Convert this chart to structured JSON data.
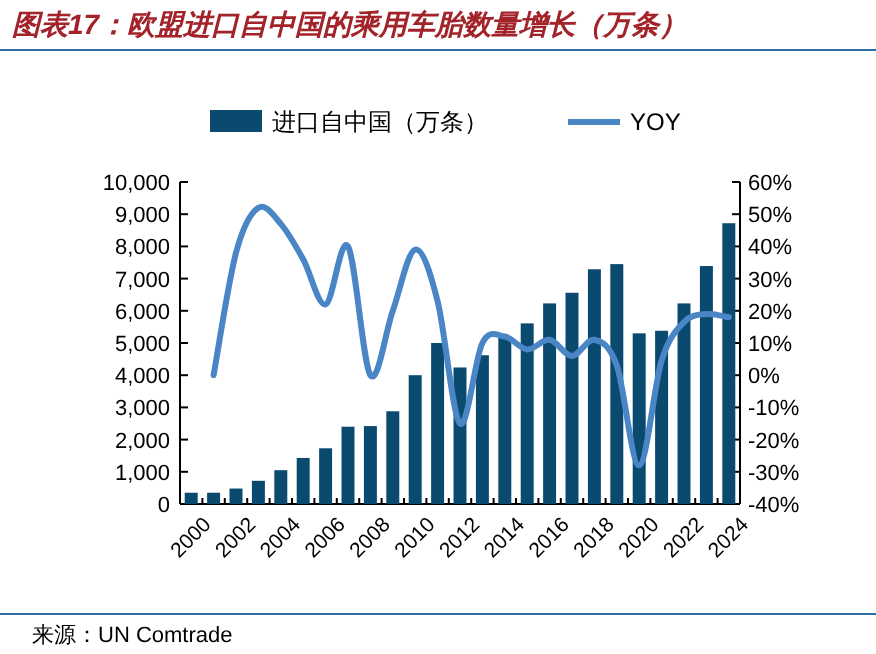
{
  "chart_data": {
    "type": "bar",
    "title": "图表17：欧盟进口自中国的乘用车胎数量增长（万条）",
    "categories": [
      "2000",
      null,
      "2002",
      null,
      "2004",
      null,
      "2006",
      null,
      "2008",
      null,
      "2010",
      null,
      "2012",
      null,
      "2014",
      null,
      "2016",
      null,
      "2018",
      null,
      "2020",
      null,
      "2022",
      null,
      "2024"
    ],
    "series": [
      {
        "name": "进口自中国（万条）",
        "color": "#0b4a6f",
        "values": [
          350,
          350,
          480,
          720,
          1050,
          1430,
          1730,
          2400,
          2420,
          2880,
          4000,
          5000,
          4240,
          4620,
          5220,
          5610,
          6230,
          6560,
          7290,
          7450,
          5300,
          5380,
          6230,
          7390,
          8720
        ]
      },
      {
        "name": "YOY",
        "type": "line",
        "axis": "y2",
        "color": "#4a86c5",
        "values": [
          null,
          0,
          38,
          52,
          47,
          36,
          22,
          40,
          0,
          20,
          39,
          23,
          -15,
          10,
          12,
          8,
          11,
          6,
          11,
          3,
          -28,
          4.5,
          16.5,
          19,
          18
        ]
      }
    ],
    "ylim": [
      0,
      10000
    ],
    "yticks": [
      0,
      {
        "value": 1000,
        "label": "1,000"
      },
      {
        "value": 2000,
        "label": "2,000"
      },
      {
        "value": 3000,
        "label": "3,000"
      },
      {
        "value": 4000,
        "label": "4,000"
      },
      {
        "value": 5000,
        "label": "5,000"
      },
      {
        "value": 6000,
        "label": "6,000"
      },
      {
        "value": 7000,
        "label": "7,000"
      },
      {
        "value": 8000,
        "label": "8,000"
      },
      {
        "value": 9000,
        "label": "9,000"
      },
      {
        "value": 10000,
        "label": "10,000"
      }
    ],
    "y2lim": [
      -40,
      60
    ],
    "y2ticks": [
      {
        "value": -40,
        "label": "-40%"
      },
      {
        "value": -30,
        "label": "-30%"
      },
      {
        "value": -20,
        "label": "-20%"
      },
      {
        "value": -10,
        "label": "-10%"
      },
      {
        "value": 0,
        "label": "0%"
      },
      {
        "value": 10,
        "label": "10%"
      },
      {
        "value": 20,
        "label": "20%"
      },
      {
        "value": 30,
        "label": "30%"
      },
      {
        "value": 40,
        "label": "40%"
      },
      {
        "value": 50,
        "label": "50%"
      },
      {
        "value": 60,
        "label": "60%"
      }
    ],
    "legend": "top",
    "annotations": [
      "来源：UN Comtrade"
    ]
  }
}
